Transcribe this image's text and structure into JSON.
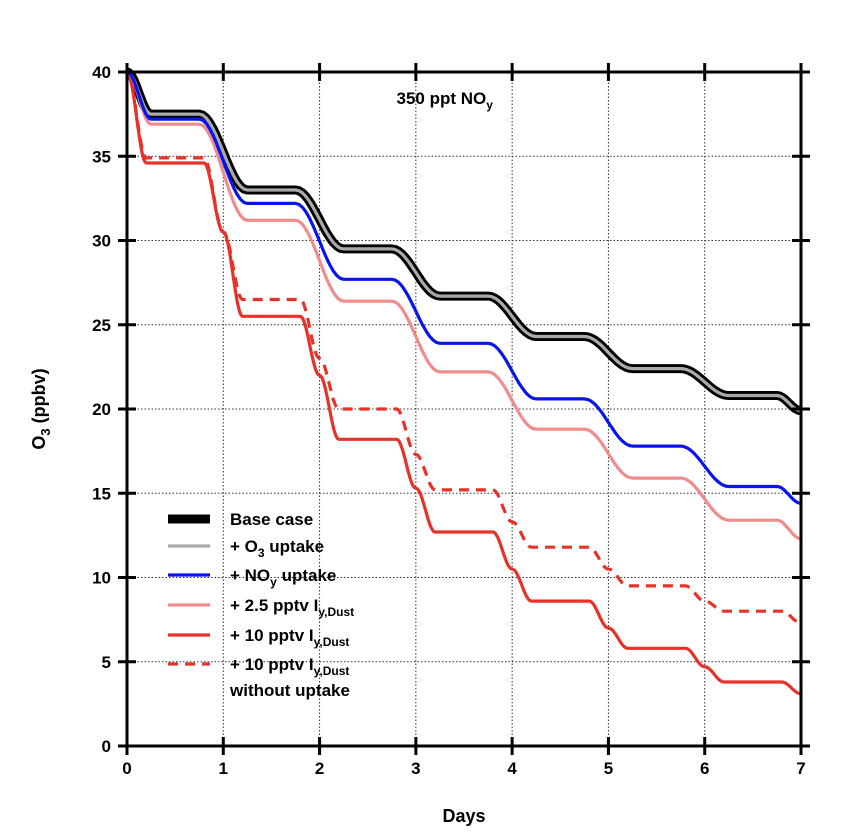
{
  "chart_data": {
    "type": "line",
    "title": "",
    "annotation": {
      "main": "350 ppt NO",
      "sub": "y"
    },
    "xlabel": "Days",
    "ylabel": {
      "main": "O",
      "sub": "3",
      "rest": " (ppbv)"
    },
    "xlim": [
      0,
      7
    ],
    "ylim": [
      0,
      40
    ],
    "xticks": [
      "0",
      "1",
      "2",
      "3",
      "4",
      "5",
      "6",
      "7"
    ],
    "yticks": [
      "0",
      "5",
      "10",
      "15",
      "20",
      "25",
      "30",
      "35",
      "40"
    ],
    "grid": true,
    "legend_position": "bottom-left",
    "series": [
      {
        "name": {
          "a": "Base case",
          "b": "",
          "c": ""
        },
        "color": "#000000",
        "style": "thick-black",
        "x": [
          0,
          0.25,
          0.75,
          1.25,
          1.75,
          2.25,
          2.75,
          3.25,
          3.75,
          4.25,
          4.75,
          5.25,
          5.75,
          6.25,
          6.75,
          7
        ],
        "y": [
          40,
          37.5,
          37.5,
          33.0,
          33.0,
          29.5,
          29.5,
          26.7,
          26.7,
          24.3,
          24.3,
          22.4,
          22.4,
          20.8,
          20.8,
          19.9
        ]
      },
      {
        "name": {
          "a": "+ O",
          "b": "3",
          "c": " uptake"
        },
        "color": "#aaaaaa",
        "style": "solid",
        "x": [
          0,
          0.25,
          0.75,
          1.25,
          1.75,
          2.25,
          2.75,
          3.25,
          3.75,
          4.25,
          4.75,
          5.25,
          5.75,
          6.25,
          6.75,
          7
        ],
        "y": [
          40,
          37.5,
          37.5,
          33.0,
          33.0,
          29.5,
          29.5,
          26.7,
          26.7,
          24.3,
          24.3,
          22.4,
          22.4,
          20.8,
          20.8,
          19.9
        ]
      },
      {
        "name": {
          "a": "+ NO",
          "b": "y",
          "c": " uptake"
        },
        "color": "#0a14f0",
        "style": "solid",
        "x": [
          0,
          0.25,
          0.75,
          1.25,
          1.75,
          2.25,
          2.75,
          3.25,
          3.75,
          4.25,
          4.75,
          5.25,
          5.75,
          6.25,
          6.75,
          7
        ],
        "y": [
          40,
          37.2,
          37.2,
          32.2,
          32.2,
          27.7,
          27.7,
          23.9,
          23.9,
          20.6,
          20.6,
          17.8,
          17.8,
          15.4,
          15.4,
          14.4
        ]
      },
      {
        "name": {
          "a": "+ 2.5 pptv I",
          "b": "y,Dust",
          "c": ""
        },
        "color": "#f08c8c",
        "style": "solid",
        "x": [
          0,
          0.25,
          0.75,
          1.25,
          1.75,
          2.25,
          2.75,
          3.25,
          3.75,
          4.25,
          4.75,
          5.25,
          5.75,
          6.25,
          6.75,
          7
        ],
        "y": [
          40,
          36.9,
          36.9,
          31.2,
          31.2,
          26.4,
          26.4,
          22.2,
          22.2,
          18.8,
          18.8,
          15.9,
          15.9,
          13.4,
          13.4,
          12.3
        ]
      },
      {
        "name": {
          "a": "+ 10 pptv I",
          "b": "y,Dust",
          "c": ""
        },
        "color": "#e63228",
        "style": "solid",
        "x": [
          0,
          0.2,
          0.8,
          1.0,
          1.2,
          1.8,
          2.0,
          2.2,
          2.8,
          3.0,
          3.2,
          3.8,
          4.0,
          4.2,
          4.8,
          5.0,
          5.2,
          5.8,
          6.0,
          6.2,
          6.8,
          7
        ],
        "y": [
          40,
          34.6,
          34.6,
          30.5,
          25.5,
          25.5,
          22.0,
          18.2,
          18.2,
          15.3,
          12.7,
          12.7,
          10.5,
          8.6,
          8.6,
          7.0,
          5.8,
          5.8,
          4.7,
          3.8,
          3.8,
          3.1
        ]
      },
      {
        "name": {
          "a": "+ 10 pptv I",
          "b": "y,Dust",
          "c": "",
          "line2": "without uptake"
        },
        "color": "#e63228",
        "style": "dashed",
        "x": [
          0,
          0.2,
          0.8,
          1.0,
          1.2,
          1.8,
          2.0,
          2.2,
          2.8,
          3.0,
          3.2,
          3.8,
          4.0,
          4.2,
          4.8,
          5.0,
          5.2,
          5.8,
          6.0,
          6.2,
          6.8,
          7
        ],
        "y": [
          40,
          34.9,
          34.9,
          30.5,
          26.5,
          26.5,
          23.0,
          20.0,
          20.0,
          17.3,
          15.2,
          15.2,
          13.3,
          11.8,
          11.8,
          10.5,
          9.5,
          9.5,
          8.6,
          8.0,
          8.0,
          7.3
        ]
      }
    ]
  }
}
